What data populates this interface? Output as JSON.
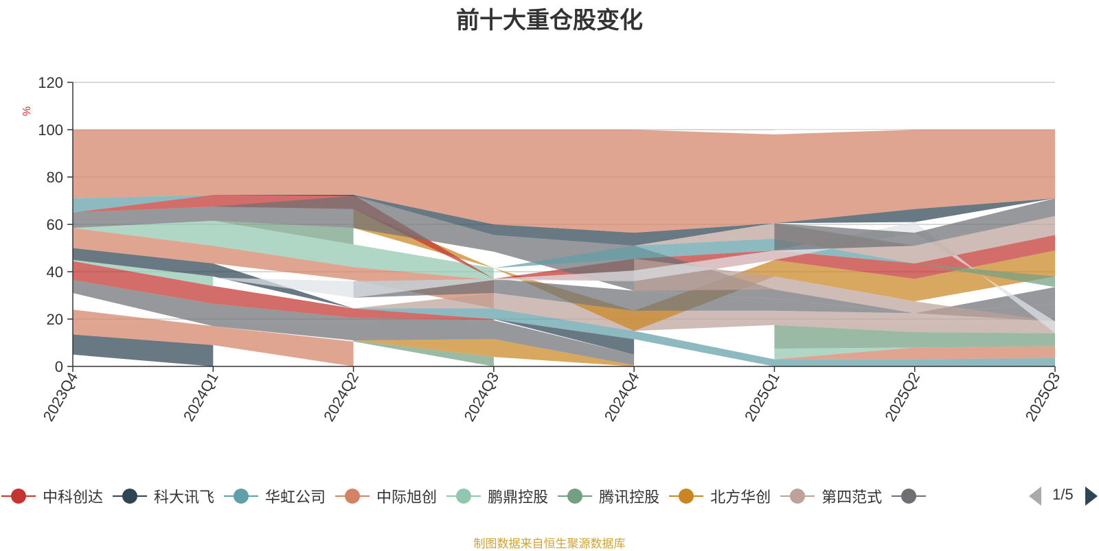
{
  "footer": {
    "source": "制图数据来自恒生聚源数据库"
  },
  "legend": {
    "items": [
      {
        "label": "中科创达",
        "color": "#c23531"
      },
      {
        "label": "科大讯飞",
        "color": "#2f4554"
      },
      {
        "label": "华虹公司",
        "color": "#61a0a8"
      },
      {
        "label": "中际旭创",
        "color": "#d48265"
      },
      {
        "label": "鹏鼎控股",
        "color": "#91c7ae"
      },
      {
        "label": "腾讯控股",
        "color": "#749f83"
      },
      {
        "label": "北方华创",
        "color": "#ca8622"
      },
      {
        "label": "第四范式",
        "color": "#bda29a"
      },
      {
        "label": "",
        "color": "#6e7074"
      }
    ],
    "page": "1/5"
  },
  "chart_data": {
    "type": "area",
    "title": "前十大重仓股变化",
    "ylabel": "%",
    "ylim": [
      0,
      120
    ],
    "yticks": [
      0,
      20,
      40,
      60,
      80,
      100,
      120
    ],
    "grid": true,
    "legend_position": "bottom",
    "categories": [
      "2023Q4",
      "2024Q1",
      "2024Q2",
      "2024Q3",
      "2024Q4",
      "2025Q1",
      "2025Q2",
      "2025Q3"
    ],
    "bands": [
      {
        "color": "#c23531",
        "values": [
          [
            0,
            5
          ],
          null,
          null,
          null,
          null,
          null,
          null,
          null
        ]
      },
      {
        "color": "#2f4554",
        "values": [
          [
            5,
            13.5
          ],
          [
            0,
            9
          ],
          null,
          null,
          null,
          null,
          null,
          null
        ]
      },
      {
        "color": "#d48265",
        "values": [
          [
            13.5,
            24
          ],
          [
            9,
            17
          ],
          [
            0,
            10.5
          ],
          null,
          null,
          null,
          null,
          null
        ]
      },
      {
        "color": "#749f83",
        "values": [
          [
            24,
            31
          ],
          null,
          [
            10.5,
            11
          ],
          [
            0,
            4
          ],
          null,
          null,
          null,
          null
        ]
      },
      {
        "color": "#ca8622",
        "values": [
          null,
          null,
          [
            11,
            11
          ],
          [
            4,
            11.5
          ],
          [
            0,
            0.5
          ],
          null,
          null,
          null
        ]
      },
      {
        "color": "#6e7074",
        "values": [
          [
            31,
            36.5
          ],
          [
            17,
            26.5
          ],
          [
            11,
            20.5
          ],
          [
            11.5,
            19.5
          ],
          [
            0.5,
            5
          ],
          null,
          null,
          null
        ]
      },
      {
        "color": "#c23531",
        "values": [
          [
            36.5,
            44.5
          ],
          [
            26.5,
            34
          ],
          [
            20.5,
            24.5
          ],
          [
            19.5,
            20
          ],
          null,
          null,
          null,
          null
        ]
      },
      {
        "color": "#91c7ae",
        "values": [
          [
            44.5,
            45
          ],
          [
            34,
            38
          ],
          null,
          null,
          null,
          null,
          null,
          null
        ]
      },
      {
        "color": "#2f4554",
        "values": [
          [
            45,
            50
          ],
          [
            38,
            43.5
          ],
          [
            24.5,
            24.5
          ],
          [
            20,
            20
          ],
          [
            5,
            11.5
          ],
          null,
          null,
          null
        ]
      },
      {
        "color": "#61a0a8",
        "values": [
          null,
          null,
          [
            24.5,
            24.5
          ],
          [
            20,
            24.5
          ],
          [
            11.5,
            15
          ],
          [
            0,
            3
          ],
          [
            0,
            3
          ],
          [
            0,
            3.5
          ]
        ]
      },
      {
        "color": "#d48265",
        "values": [
          [
            50,
            58.5
          ],
          [
            43.5,
            51
          ],
          [
            36.5,
            42
          ],
          [
            24.5,
            36.5
          ],
          null,
          [
            3,
            3
          ],
          [
            3,
            8
          ],
          [
            3.5,
            8.5
          ]
        ]
      },
      {
        "color": "#91c7ae",
        "values": [
          [
            58.5,
            58.5
          ],
          [
            51,
            61.5
          ],
          [
            42,
            51.5
          ],
          [
            36.5,
            41.5
          ],
          null,
          [
            3,
            7.5
          ],
          [
            8,
            8
          ],
          [
            8.5,
            8.5
          ]
        ]
      },
      {
        "color": "#749f83",
        "values": [
          null,
          [
            61.5,
            61.5
          ],
          [
            51.5,
            58.5
          ],
          null,
          null,
          [
            7.5,
            17.5
          ],
          [
            8,
            14.5
          ],
          [
            8.5,
            14
          ]
        ]
      },
      {
        "color": "#bda29a",
        "values": [
          null,
          null,
          [
            24.5,
            24.5
          ],
          [
            24.5,
            31
          ],
          [
            15,
            23.5
          ],
          [
            17.5,
            23.5
          ],
          [
            14.5,
            22.5
          ],
          [
            14,
            14
          ]
        ]
      },
      {
        "color": "#ca8622",
        "values": [
          null,
          null,
          [
            58.5,
            66.5
          ],
          [
            41.5,
            41.5
          ],
          [
            15,
            23.5
          ],
          [
            38,
            45
          ],
          [
            27.5,
            37
          ],
          [
            38,
            49
          ]
        ]
      },
      {
        "color": "#6e7074",
        "values": [
          null,
          null,
          [
            29,
            36
          ],
          [
            31,
            37
          ],
          [
            23.5,
            32
          ],
          [
            23.5,
            28.5
          ],
          [
            22.5,
            22.5
          ],
          [
            19,
            26.5
          ]
        ]
      },
      {
        "color": "#c23531",
        "values": [
          [
            65,
            65
          ],
          [
            67.5,
            72.5
          ],
          [
            66.5,
            72.5
          ],
          [
            37,
            37
          ],
          [
            36,
            45.5
          ],
          [
            45,
            49
          ],
          [
            37,
            43.5
          ],
          [
            49,
            55.5
          ]
        ]
      },
      {
        "color": "#6e7074",
        "values": [
          [
            58.5,
            65
          ],
          [
            61.5,
            67.5
          ],
          [
            58.5,
            72
          ],
          [
            48.5,
            55.5
          ],
          [
            32,
            51
          ],
          [
            28.5,
            32.5
          ],
          [
            22.5,
            22.5
          ],
          [
            26.5,
            33.5
          ]
        ]
      },
      {
        "color": "#61a0a8",
        "values": [
          [
            65,
            71
          ],
          [
            72.5,
            72.5
          ],
          null,
          [
            41.5,
            41.5
          ],
          [
            45.5,
            51
          ],
          [
            49,
            54
          ],
          [
            43.5,
            43.5
          ],
          null
        ]
      },
      {
        "color": "#2f4554",
        "values": [
          [
            71,
            71
          ],
          [
            72.5,
            72.5
          ],
          [
            72,
            72.5
          ],
          [
            55.5,
            60
          ],
          [
            51,
            56.5
          ],
          [
            60.5,
            60.5
          ],
          [
            61,
            66.5
          ],
          [
            71,
            71
          ]
        ]
      },
      {
        "color": "#ffffff",
        "values": [
          null,
          null,
          null,
          null,
          null,
          [
            98,
            100
          ],
          [
            100,
            100
          ],
          null
        ]
      },
      {
        "color": "#d48265",
        "values": [
          [
            71,
            100
          ],
          [
            72.5,
            100
          ],
          [
            72.5,
            100
          ],
          [
            60,
            100
          ],
          [
            56.5,
            100
          ],
          [
            60.5,
            98
          ],
          [
            66.5,
            100
          ],
          [
            71,
            100
          ]
        ]
      },
      {
        "color": "#bda29a",
        "values": [
          null,
          null,
          null,
          null,
          [
            32,
            45.5
          ],
          [
            32.5,
            38
          ],
          [
            22.5,
            27.5
          ],
          [
            14,
            19
          ]
        ]
      },
      {
        "color": "#dfe3e8",
        "values": [
          null,
          [
            37.5,
            37.5
          ],
          [
            29,
            36
          ],
          [
            36.5,
            37
          ],
          [
            36,
            40.5
          ],
          [
            45,
            49
          ],
          [
            56.5,
            61
          ],
          [
            19,
            14
          ]
        ]
      },
      {
        "color": "#bda29a",
        "values": [
          null,
          null,
          null,
          null,
          [
            51,
            51
          ],
          [
            54,
            60.5
          ],
          [
            43.5,
            51
          ],
          [
            55.5,
            63.5
          ]
        ]
      },
      {
        "color": "#6e7074",
        "values": [
          null,
          null,
          null,
          null,
          null,
          [
            49,
            60.5
          ],
          [
            51,
            56.5
          ],
          [
            63.5,
            71
          ]
        ]
      },
      {
        "color": "#749f83",
        "values": [
          null,
          null,
          null,
          null,
          null,
          null,
          [
            43.5,
            43.5
          ],
          [
            33.5,
            38
          ]
        ]
      }
    ]
  }
}
